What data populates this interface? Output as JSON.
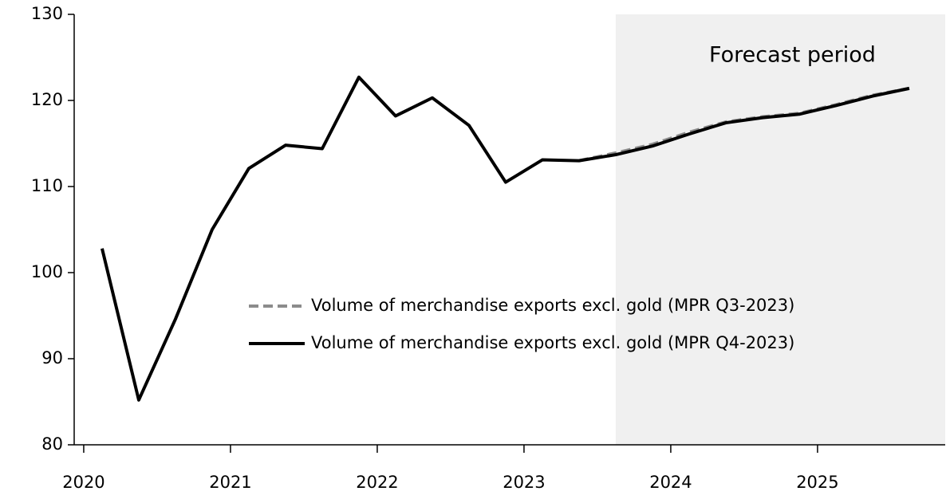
{
  "chart_data": {
    "type": "line",
    "x": [
      2020.125,
      2020.375,
      2020.625,
      2020.875,
      2021.125,
      2021.375,
      2021.625,
      2021.875,
      2022.125,
      2022.375,
      2022.625,
      2022.875,
      2023.125,
      2023.375,
      2023.625,
      2023.875,
      2024.125,
      2024.375,
      2024.625,
      2024.875,
      2025.125,
      2025.375,
      2025.625
    ],
    "series": [
      {
        "name": "Volume of merchandise exports excl. gold (MPR Q3-2023)",
        "color": "#8c8c8c",
        "dash": true,
        "values": [
          null,
          null,
          null,
          null,
          null,
          null,
          null,
          null,
          null,
          null,
          null,
          null,
          null,
          113.0,
          113.9,
          114.9,
          116.3,
          117.5,
          118.1,
          118.5,
          119.5,
          120.6,
          121.4
        ]
      },
      {
        "name": "Volume of merchandise exports excl. gold (MPR Q4-2023)",
        "color": "#000000",
        "dash": false,
        "values": [
          102.8,
          85.2,
          94.6,
          105.0,
          112.1,
          114.8,
          114.4,
          122.7,
          118.2,
          120.3,
          117.1,
          110.5,
          113.1,
          113.0,
          113.7,
          114.7,
          116.1,
          117.4,
          118.0,
          118.4,
          119.4,
          120.5,
          121.4
        ]
      }
    ],
    "xlim": [
      2019.935,
      2025.87
    ],
    "xticks": [
      2020,
      2021,
      2022,
      2023,
      2024,
      2025
    ],
    "ylim": [
      80,
      130
    ],
    "yticks": [
      80,
      90,
      100,
      110,
      120,
      130
    ],
    "shaded_region": {
      "label": "Forecast period",
      "x_start": 2023.625,
      "color": "#f0f0f0"
    }
  }
}
